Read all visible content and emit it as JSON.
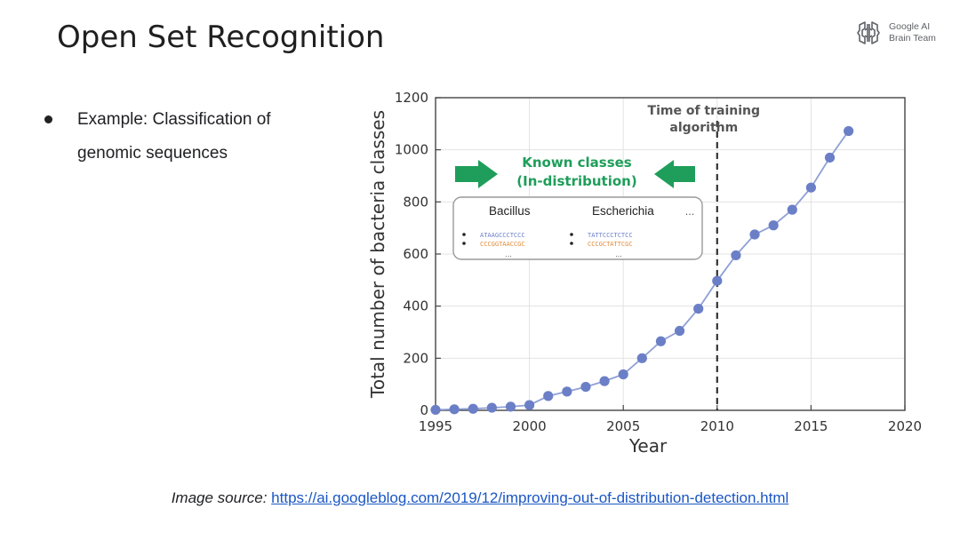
{
  "slide": {
    "title": "Open Set Recognition",
    "logo": {
      "icon": "google-ai-brain-logo-icon",
      "line1": "Google AI",
      "line2": "Brain Team"
    },
    "bullets": [
      "Example: Classification of genomic sequences"
    ],
    "source": {
      "label": "Image source:",
      "url": "https://ai.googleblog.com/2019/12/improving-out-of-distribution-detection.html"
    }
  },
  "chart_data": {
    "type": "line",
    "xlabel": "Year",
    "ylabel": "Total number of bacteria classes",
    "xlim": [
      1995,
      2020
    ],
    "ylim": [
      0,
      1200
    ],
    "xticks": [
      1995,
      2000,
      2005,
      2010,
      2015,
      2020
    ],
    "yticks": [
      0,
      200,
      400,
      600,
      800,
      1000,
      1200
    ],
    "grid": true,
    "series": [
      {
        "x": [
          1995,
          1996,
          1997,
          1998,
          1999,
          2000,
          2001,
          2002,
          2003,
          2004,
          2005,
          2006,
          2007,
          2008,
          2009,
          2010,
          2011,
          2012,
          2013,
          2014,
          2015,
          2016,
          2017
        ],
        "y": [
          2,
          4,
          6,
          10,
          14,
          20,
          55,
          72,
          90,
          112,
          138,
          200,
          265,
          305,
          390,
          497,
          595,
          675,
          710,
          770,
          855,
          970,
          1072
        ],
        "color": "#6b7fc7"
      }
    ],
    "annotations": {
      "vline": {
        "x": 2010,
        "label_line1": "Time of training",
        "label_line2": "algorithm"
      },
      "known": {
        "line1": "Known classes",
        "line2": "(In-distribution)",
        "color": "#1e9e5a"
      },
      "inset": {
        "columns": [
          {
            "name": "Bacillus",
            "seqs": [
              "ATAAGCCCTCCC",
              "CCCGGTAACCGC"
            ],
            "more": "..."
          },
          {
            "name": "Escherichia",
            "seqs": [
              "TATTCCCTCTCC",
              "CCCGCTATTCGC"
            ],
            "more": "..."
          }
        ],
        "ellipsis": "..."
      }
    }
  }
}
